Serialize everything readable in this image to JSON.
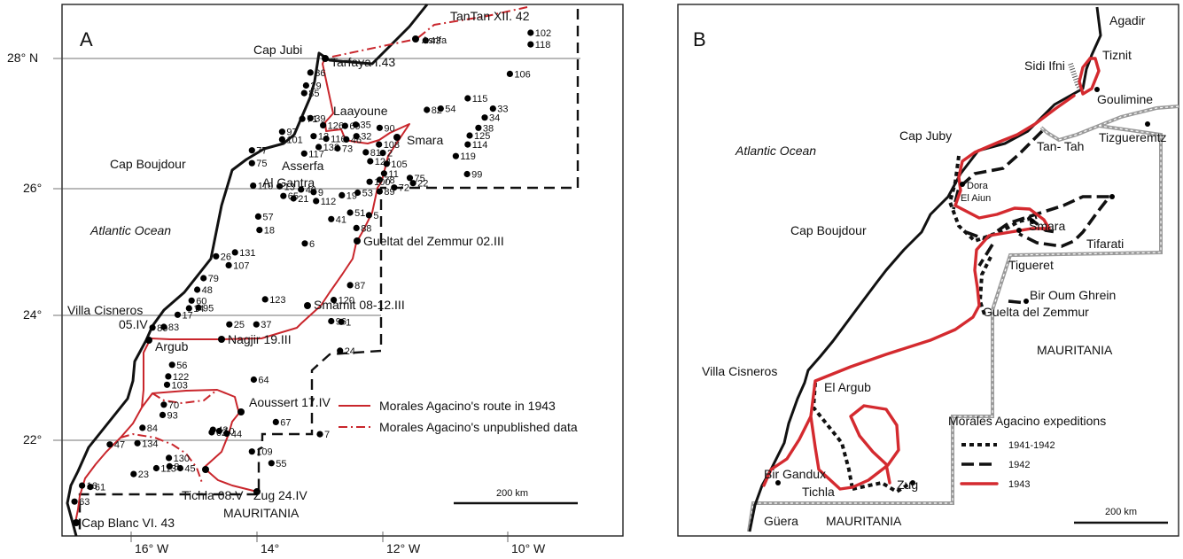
{
  "panel_a": {
    "letter": "A",
    "lat_labels": [
      "28° N",
      "26°",
      "24°",
      "22°"
    ],
    "lon_labels": [
      "16° W",
      "14°",
      "12° W",
      "10° W"
    ],
    "places": {
      "tantan": "TanTan XII. 42",
      "cap_jubi": "Cap Jubi",
      "tarfaya": "Tarfaya I.43",
      "laayoune": "Laayoune",
      "smara": "Smara",
      "asrifa": "Asrifa",
      "cap_boujdour": "Cap Boujdour",
      "asserfa": "Asserfa",
      "al_gantra": "Al Gantra",
      "atlantic": "Atlantic Ocean",
      "gueltat": "Gueltat del Zemmur 02.III",
      "villa_cisneros": "Villa Cisneros",
      "date_05iv": "05.IV",
      "smamit": "Smamit 08-12.III",
      "argub": "Argub",
      "nagjir": "Nagjir 19.III",
      "aoussert": "Aoussert 17.IV",
      "tichla": "Tichla 08.V",
      "zug": "Zug 24.IV",
      "cap_blanc": "Cap Blanc VI. 43",
      "mauritania": "MAURITANIA"
    },
    "legend": {
      "route": "Morales Agacino's route in 1943",
      "unpublished": "Morales Agacino's unpublished data"
    },
    "scale": "200 km",
    "localities": [
      {
        "n": "102",
        "lat": 28.4,
        "lon": -9.65
      },
      {
        "n": "118",
        "lat": 28.22,
        "lon": -9.65
      },
      {
        "n": "43",
        "lat": 28.28,
        "lon": -11.32
      },
      {
        "n": "106",
        "lat": 27.76,
        "lon": -9.98
      },
      {
        "n": "86",
        "lat": 27.78,
        "lon": -13.15
      },
      {
        "n": "29",
        "lat": 27.58,
        "lon": -13.22
      },
      {
        "n": "85",
        "lat": 27.46,
        "lon": -13.25
      },
      {
        "n": "115",
        "lat": 27.38,
        "lon": -10.65
      },
      {
        "n": "33",
        "lat": 27.22,
        "lon": -10.25
      },
      {
        "n": "82",
        "lat": 27.2,
        "lon": -11.3
      },
      {
        "n": "54",
        "lat": 27.22,
        "lon": -11.08
      },
      {
        "n": "34",
        "lat": 27.08,
        "lon": -10.38
      },
      {
        "n": "38",
        "lat": 26.92,
        "lon": -10.48
      },
      {
        "n": "125",
        "lat": 26.8,
        "lon": -10.62
      },
      {
        "n": "114",
        "lat": 26.66,
        "lon": -10.65
      },
      {
        "n": "119",
        "lat": 26.48,
        "lon": -10.84
      },
      {
        "n": "99",
        "lat": 26.2,
        "lon": -10.66
      },
      {
        "n": "75",
        "lat": 26.14,
        "lon": -11.57
      },
      {
        "n": "22",
        "lat": 26.06,
        "lon": -11.52
      },
      {
        "n": "72",
        "lat": 25.99,
        "lon": -11.82
      },
      {
        "n": "97",
        "lat": 26.86,
        "lon": -13.6
      },
      {
        "n": "71",
        "lat": 27.06,
        "lon": -13.28
      },
      {
        "n": "39",
        "lat": 27.07,
        "lon": -13.15
      },
      {
        "n": "126",
        "lat": 26.96,
        "lon": -12.95
      },
      {
        "n": "69",
        "lat": 26.95,
        "lon": -12.6
      },
      {
        "n": "35",
        "lat": 26.97,
        "lon": -12.43
      },
      {
        "n": "90",
        "lat": 26.92,
        "lon": -12.05
      },
      {
        "n": "101",
        "lat": 26.74,
        "lon": -13.6
      },
      {
        "n": "12",
        "lat": 26.79,
        "lon": -13.1
      },
      {
        "n": "116",
        "lat": 26.75,
        "lon": -12.9
      },
      {
        "n": "46",
        "lat": 26.74,
        "lon": -12.58
      },
      {
        "n": "32",
        "lat": 26.79,
        "lon": -12.42
      },
      {
        "n": "108",
        "lat": 26.66,
        "lon": -12.06
      },
      {
        "n": "132",
        "lat": 26.62,
        "lon": -13.02
      },
      {
        "n": "73",
        "lat": 26.6,
        "lon": -12.72
      },
      {
        "n": "81",
        "lat": 26.54,
        "lon": -12.27
      },
      {
        "n": "2",
        "lat": 26.53,
        "lon": -12.0
      },
      {
        "n": "117",
        "lat": 26.52,
        "lon": -13.25
      },
      {
        "n": "124",
        "lat": 26.4,
        "lon": -12.2
      },
      {
        "n": "105",
        "lat": 26.36,
        "lon": -11.94
      },
      {
        "n": "11",
        "lat": 26.21,
        "lon": -11.98
      },
      {
        "n": "78",
        "lat": 26.11,
        "lon": -12.05
      },
      {
        "n": "100",
        "lat": 26.08,
        "lon": -12.21
      },
      {
        "n": "89",
        "lat": 25.93,
        "lon": -12.05
      },
      {
        "n": "77",
        "lat": 26.57,
        "lon": -14.08
      },
      {
        "n": "75",
        "lat": 26.37,
        "lon": -14.08
      },
      {
        "n": "110",
        "lat": 26.02,
        "lon": -14.06
      },
      {
        "n": "13",
        "lat": 26.01,
        "lon": -13.64
      },
      {
        "n": "65",
        "lat": 25.86,
        "lon": -13.58
      },
      {
        "n": "21",
        "lat": 25.82,
        "lon": -13.42
      },
      {
        "n": "40",
        "lat": 25.96,
        "lon": -13.3
      },
      {
        "n": "9",
        "lat": 25.92,
        "lon": -13.1
      },
      {
        "n": "112",
        "lat": 25.78,
        "lon": -13.06
      },
      {
        "n": "19",
        "lat": 25.87,
        "lon": -12.65
      },
      {
        "n": "53",
        "lat": 25.91,
        "lon": -12.4
      },
      {
        "n": "51",
        "lat": 25.6,
        "lon": -12.52
      },
      {
        "n": "5",
        "lat": 25.56,
        "lon": -12.22
      },
      {
        "n": "41",
        "lat": 25.5,
        "lon": -12.82
      },
      {
        "n": "88",
        "lat": 25.36,
        "lon": -12.42
      },
      {
        "n": "57",
        "lat": 25.54,
        "lon": -13.98
      },
      {
        "n": "18",
        "lat": 25.33,
        "lon": -13.96
      },
      {
        "n": "6",
        "lat": 25.12,
        "lon": -13.24
      },
      {
        "n": "131",
        "lat": 24.98,
        "lon": -14.35
      },
      {
        "n": "26",
        "lat": 24.92,
        "lon": -14.65
      },
      {
        "n": "107",
        "lat": 24.78,
        "lon": -14.45
      },
      {
        "n": "79",
        "lat": 24.58,
        "lon": -14.85
      },
      {
        "n": "48",
        "lat": 24.4,
        "lon": -14.95
      },
      {
        "n": "60",
        "lat": 24.23,
        "lon": -15.04
      },
      {
        "n": "95",
        "lat": 24.12,
        "lon": -14.93
      },
      {
        "n": "14",
        "lat": 24.11,
        "lon": -15.08
      },
      {
        "n": "17",
        "lat": 24.01,
        "lon": -15.26
      },
      {
        "n": "80",
        "lat": 23.81,
        "lon": -15.66
      },
      {
        "n": "83",
        "lat": 23.82,
        "lon": -15.48
      },
      {
        "n": "123",
        "lat": 24.25,
        "lon": -13.87
      },
      {
        "n": "120",
        "lat": 24.24,
        "lon": -12.78
      },
      {
        "n": "87",
        "lat": 24.47,
        "lon": -12.52
      },
      {
        "n": "25",
        "lat": 23.86,
        "lon": -14.44
      },
      {
        "n": "37",
        "lat": 23.86,
        "lon": -14.01
      },
      {
        "n": "96",
        "lat": 23.91,
        "lon": -12.82
      },
      {
        "n": "1",
        "lat": 23.9,
        "lon": -12.66
      },
      {
        "n": "24",
        "lat": 23.45,
        "lon": -12.68
      },
      {
        "n": "56",
        "lat": 23.23,
        "lon": -15.35
      },
      {
        "n": "122",
        "lat": 23.05,
        "lon": -15.41
      },
      {
        "n": "103",
        "lat": 22.92,
        "lon": -15.43
      },
      {
        "n": "64",
        "lat": 23.0,
        "lon": -14.05
      },
      {
        "n": "70",
        "lat": 22.61,
        "lon": -15.48
      },
      {
        "n": "93",
        "lat": 22.45,
        "lon": -15.5
      },
      {
        "n": "67",
        "lat": 22.34,
        "lon": -13.7
      },
      {
        "n": "7",
        "lat": 22.15,
        "lon": -13.0
      },
      {
        "n": "84",
        "lat": 22.25,
        "lon": -15.82
      },
      {
        "n": "42",
        "lat": 22.22,
        "lon": -14.7
      },
      {
        "n": "62",
        "lat": 22.18,
        "lon": -14.72
      },
      {
        "n": "10",
        "lat": 22.2,
        "lon": -14.6
      },
      {
        "n": "44",
        "lat": 22.16,
        "lon": -14.48
      },
      {
        "n": "47",
        "lat": 21.99,
        "lon": -16.34
      },
      {
        "n": "134",
        "lat": 22.01,
        "lon": -15.9
      },
      {
        "n": "130",
        "lat": 21.78,
        "lon": -15.4
      },
      {
        "n": "109",
        "lat": 21.88,
        "lon": -14.08
      },
      {
        "n": "55",
        "lat": 21.7,
        "lon": -13.77
      },
      {
        "n": "113",
        "lat": 21.62,
        "lon": -15.6
      },
      {
        "n": "8",
        "lat": 21.65,
        "lon": -15.39
      },
      {
        "n": "45",
        "lat": 21.62,
        "lon": -15.22
      },
      {
        "n": "23",
        "lat": 21.53,
        "lon": -15.96
      },
      {
        "n": "16",
        "lat": 21.35,
        "lon": -16.78
      },
      {
        "n": "61",
        "lat": 21.33,
        "lon": -16.65
      },
      {
        "n": "63",
        "lat": 21.1,
        "lon": -16.9
      }
    ]
  },
  "panel_b": {
    "letter": "B",
    "places": {
      "agadir": "Agadir",
      "tiznit": "Tiznit",
      "sidi_ifni": "Sidi Ifni",
      "goulimine": "Goulimine",
      "atlantic": "Atlantic Ocean",
      "cap_juby": "Cap Juby",
      "tan_tah": "Tan- Tah",
      "tizgueremtz": "Tizgueremtz",
      "dora": "Dora",
      "el_aiun": "El Aiun",
      "smara": "Smara",
      "cap_boujdour": "Cap Boujdour",
      "tifarati": "Tifarati",
      "tigueret": "Tigueret",
      "bir_oum_ghrein": "Bir Oum Ghrein",
      "guelta": "Guelta del Zemmur",
      "mauritania_top": "MAURITANIA",
      "villa_cisneros": "Villa Cisneros",
      "el_argub": "El Argub",
      "bir_gandux": "Bir Gandux",
      "tichla": "Tichla",
      "zug": "Zug",
      "guera": "Güera",
      "mauritania_bottom": "MAURITANIA"
    },
    "legend": {
      "title": "Morales Agacino expeditions",
      "items": [
        "1941-1942",
        "1942",
        "1943"
      ]
    },
    "scale": "200 km"
  },
  "colors": {
    "route": "#c9262c",
    "border_grey": "#9a9a9a",
    "ink": "#111111"
  }
}
